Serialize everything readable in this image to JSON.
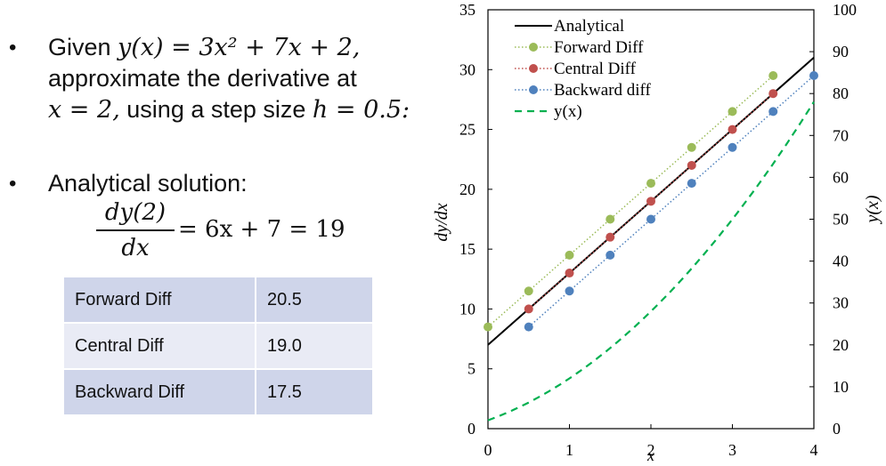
{
  "problem": {
    "bullet": "•",
    "given_prefix": "Given ",
    "given_expr": "y(x) = 3x² + 7x + 2,",
    "line2": "approximate the derivative at",
    "line3_math": "x = 2,",
    "line3_text": " using a step size ",
    "line3_h": "h = 0.5:"
  },
  "analytical": {
    "label": "Analytical solution:",
    "numerator": "dy(2)",
    "denominator": "dx",
    "rhs": "= 6x + 7 = 19"
  },
  "results_table": [
    {
      "method": "Forward Diff",
      "value": "20.5"
    },
    {
      "method": "Central Diff",
      "value": "19.0"
    },
    {
      "method": "Backward Diff",
      "value": "17.5"
    }
  ],
  "chart_data": {
    "type": "line",
    "xlabel": "x",
    "ylabel": "dy/dx",
    "y2label": "y(x)",
    "xlim": [
      0,
      4
    ],
    "ylim": [
      0,
      35
    ],
    "y2lim": [
      0,
      100
    ],
    "x_ticks": [
      "0",
      "1",
      "2",
      "3",
      "4"
    ],
    "y_ticks": [
      "0",
      "5",
      "10",
      "15",
      "20",
      "25",
      "30",
      "35"
    ],
    "y2_ticks": [
      "0",
      "10",
      "20",
      "30",
      "40",
      "50",
      "60",
      "70",
      "80",
      "90",
      "100"
    ],
    "legend_position": "top-left",
    "series": [
      {
        "name": "Analytical",
        "axis": "left",
        "style": "solid",
        "color": "#000000",
        "x": [
          0,
          4
        ],
        "y": [
          7,
          31
        ]
      },
      {
        "name": "Forward Diff",
        "axis": "left",
        "style": "dotted",
        "color": "#9bbb59",
        "x": [
          0,
          0.5,
          1,
          1.5,
          2,
          2.5,
          3,
          3.5
        ],
        "y": [
          8.5,
          11.5,
          14.5,
          17.5,
          20.5,
          23.5,
          26.5,
          29.5
        ]
      },
      {
        "name": "Central Diff",
        "axis": "left",
        "style": "dotted",
        "color": "#c0504d",
        "x": [
          0.5,
          1,
          1.5,
          2,
          2.5,
          3,
          3.5
        ],
        "y": [
          10,
          13,
          16,
          19,
          22,
          25,
          28
        ]
      },
      {
        "name": "Backward diff",
        "axis": "left",
        "style": "dotted",
        "color": "#4f81bd",
        "x": [
          0.5,
          1,
          1.5,
          2,
          2.5,
          3,
          3.5,
          4
        ],
        "y": [
          8.5,
          11.5,
          14.5,
          17.5,
          20.5,
          23.5,
          26.5,
          29.5
        ]
      },
      {
        "name": "y(x)",
        "axis": "right",
        "style": "dashed",
        "color": "#00b050",
        "function": "3x^2+7x+2",
        "x_range": [
          0,
          4
        ]
      }
    ]
  }
}
